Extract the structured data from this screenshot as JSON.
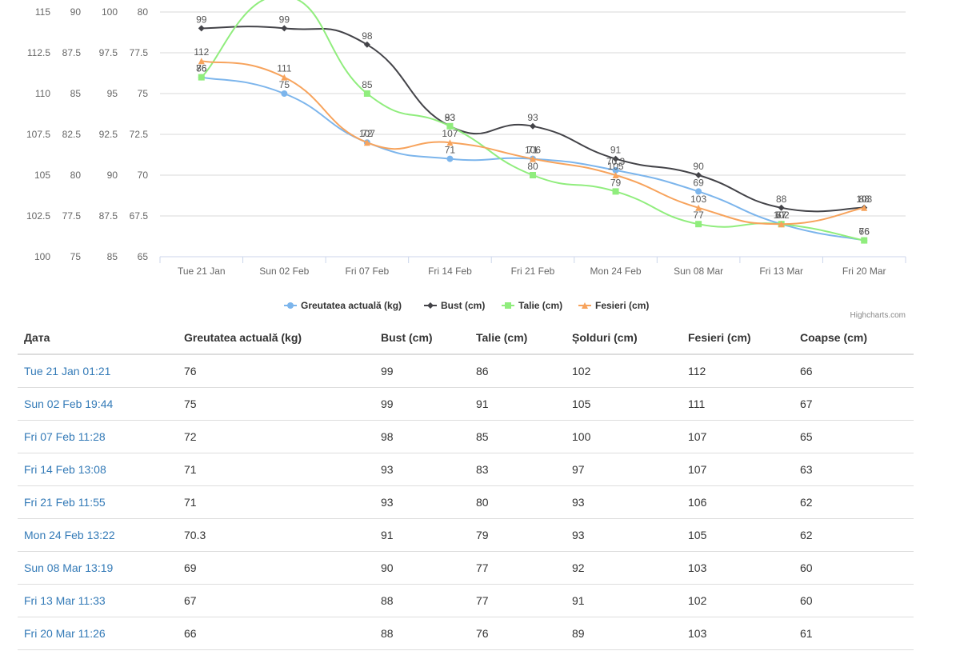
{
  "chart_data": {
    "type": "line",
    "categories": [
      "Tue 21 Jan",
      "Sun 02 Feb",
      "Fri 07 Feb",
      "Fri 14 Feb",
      "Fri 21 Feb",
      "Mon 24 Feb",
      "Sun 08 Mar",
      "Fri 13 Mar",
      "Fri 20 Mar"
    ],
    "y_axes": [
      {
        "min": 100,
        "max": 115,
        "ticks": [
          "115",
          "112.5",
          "110",
          "107.5",
          "105",
          "102.5",
          "100"
        ]
      },
      {
        "min": 75,
        "max": 90,
        "ticks": [
          "90",
          "87.5",
          "85",
          "82.5",
          "80",
          "77.5",
          "75"
        ]
      },
      {
        "min": 85,
        "max": 100,
        "ticks": [
          "100",
          "97.5",
          "95",
          "92.5",
          "90",
          "87.5",
          "85"
        ]
      },
      {
        "min": 65,
        "max": 80,
        "ticks": [
          "80",
          "77.5",
          "75",
          "72.5",
          "70",
          "67.5",
          "65"
        ]
      }
    ],
    "series": [
      {
        "name": "Greutatea actuală (kg)",
        "color": "#7cb5ec",
        "marker": "circle",
        "axis": 3,
        "values": [
          76,
          75,
          72,
          71,
          71,
          70.3,
          69,
          67,
          66
        ]
      },
      {
        "name": "Bust (cm)",
        "color": "#434348",
        "marker": "diamond",
        "axis": 2,
        "values": [
          99,
          99,
          98,
          93,
          93,
          91,
          90,
          88,
          88
        ]
      },
      {
        "name": "Talie (cm)",
        "color": "#90ed7d",
        "marker": "square",
        "axis": 1,
        "values": [
          86,
          91,
          85,
          83,
          80,
          79,
          77,
          77,
          76
        ]
      },
      {
        "name": "Fesieri (cm)",
        "color": "#f7a35c",
        "marker": "triangle",
        "axis": 0,
        "values": [
          112,
          111,
          107,
          107,
          106,
          105,
          103,
          102,
          103
        ]
      }
    ],
    "grid": true,
    "legend_position": "bottom-center",
    "credits": "Highcharts.com"
  },
  "table": {
    "headers": [
      "Дата",
      "Greutatea actuală (kg)",
      "Bust (cm)",
      "Talie (cm)",
      "Șolduri (cm)",
      "Fesieri (cm)",
      "Coapse (cm)"
    ],
    "rows": [
      [
        "Tue 21 Jan 01:21",
        "76",
        "99",
        "86",
        "102",
        "112",
        "66"
      ],
      [
        "Sun 02 Feb 19:44",
        "75",
        "99",
        "91",
        "105",
        "111",
        "67"
      ],
      [
        "Fri 07 Feb 11:28",
        "72",
        "98",
        "85",
        "100",
        "107",
        "65"
      ],
      [
        "Fri 14 Feb 13:08",
        "71",
        "93",
        "83",
        "97",
        "107",
        "63"
      ],
      [
        "Fri 21 Feb 11:55",
        "71",
        "93",
        "80",
        "93",
        "106",
        "62"
      ],
      [
        "Mon 24 Feb 13:22",
        "70.3",
        "91",
        "79",
        "93",
        "105",
        "62"
      ],
      [
        "Sun 08 Mar 13:19",
        "69",
        "90",
        "77",
        "92",
        "103",
        "60"
      ],
      [
        "Fri 13 Mar 11:33",
        "67",
        "88",
        "77",
        "91",
        "102",
        "60"
      ],
      [
        "Fri 20 Mar 11:26",
        "66",
        "88",
        "76",
        "89",
        "103",
        "61"
      ]
    ]
  }
}
